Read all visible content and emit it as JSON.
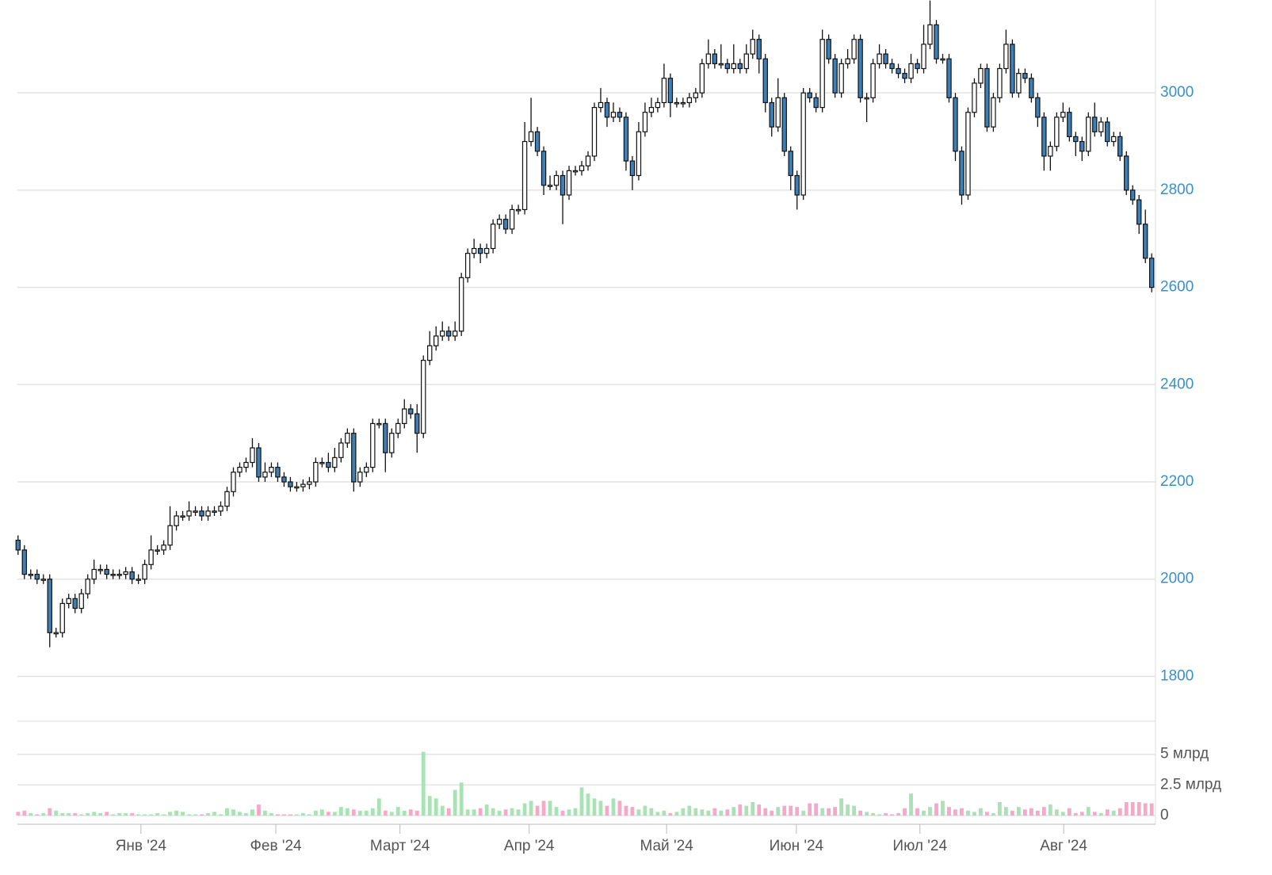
{
  "chart_data": [
    {
      "type": "candlestick",
      "up_color": "#ffffff",
      "down_color": "#3f7fb6",
      "xlim": [
        -0.1,
        179.6
      ],
      "ylim": [
        1773,
        3191
      ],
      "yticks": [
        1800,
        2000,
        2200,
        2400,
        2600,
        2800,
        3000
      ],
      "grid": true,
      "open": [
        2080,
        2060,
        2010,
        2010,
        2000,
        2000,
        1890,
        1890,
        1950,
        1960,
        1940,
        1970,
        2000,
        2020,
        2020,
        2010,
        2010,
        2010,
        2015,
        2000,
        2000,
        2030,
        2060,
        2060,
        2070,
        2110,
        2130,
        2130,
        2140,
        2140,
        2130,
        2140,
        2140,
        2150,
        2180,
        2220,
        2230,
        2240,
        2270,
        2210,
        2220,
        2230,
        2210,
        2200,
        2190,
        2190,
        2195,
        2200,
        2240,
        2240,
        2230,
        2250,
        2280,
        2300,
        2200,
        2220,
        2230,
        2320,
        2320,
        2260,
        2300,
        2320,
        2350,
        2340,
        2300,
        2450,
        2480,
        2500,
        2510,
        2500,
        2510,
        2620,
        2670,
        2680,
        2670,
        2680,
        2730,
        2740,
        2720,
        2760,
        2760,
        2900,
        2920,
        2880,
        2810,
        2810,
        2830,
        2790,
        2840,
        2840,
        2850,
        2870,
        2970,
        2980,
        2950,
        2960,
        2950,
        2860,
        2830,
        2920,
        2960,
        2970,
        2980,
        3030,
        2980,
        2980,
        2980,
        2990,
        3000,
        3060,
        3080,
        3060,
        3060,
        3050,
        3060,
        3050,
        3080,
        3110,
        3070,
        2980,
        2930,
        2990,
        2880,
        2830,
        2790,
        3000,
        2990,
        2970,
        3110,
        3070,
        3000,
        3060,
        3070,
        3110,
        2990,
        2990,
        3060,
        3080,
        3060,
        3050,
        3040,
        3030,
        3060,
        3050,
        3100,
        3140,
        3070,
        3070,
        2990,
        2880,
        2790,
        2960,
        3020,
        3050,
        2930,
        2990,
        3050,
        3100,
        3000,
        3040,
        3030,
        2990,
        2950,
        2870,
        2890,
        2950,
        2960,
        2910,
        2900,
        2880,
        2950,
        2920,
        2940,
        2900,
        2910,
        2870,
        2800,
        2780,
        2730,
        2660
      ],
      "high": [
        2090,
        2070,
        2020,
        2020,
        2010,
        2010,
        1900,
        1960,
        1970,
        1970,
        1980,
        2010,
        2040,
        2030,
        2030,
        2020,
        2020,
        2025,
        2025,
        2010,
        2040,
        2090,
        2070,
        2080,
        2150,
        2140,
        2140,
        2160,
        2150,
        2150,
        2150,
        2150,
        2160,
        2190,
        2230,
        2240,
        2250,
        2290,
        2280,
        2240,
        2240,
        2240,
        2220,
        2210,
        2200,
        2205,
        2210,
        2250,
        2250,
        2260,
        2270,
        2290,
        2310,
        2310,
        2230,
        2240,
        2330,
        2330,
        2330,
        2310,
        2330,
        2370,
        2360,
        2360,
        2460,
        2510,
        2520,
        2530,
        2520,
        2530,
        2630,
        2680,
        2700,
        2690,
        2690,
        2740,
        2750,
        2750,
        2770,
        2770,
        2940,
        2990,
        2930,
        2890,
        2830,
        2840,
        2840,
        2850,
        2850,
        2860,
        2880,
        2980,
        3010,
        2990,
        2980,
        2970,
        2960,
        2870,
        2940,
        2980,
        2990,
        2990,
        3060,
        3040,
        2990,
        2990,
        3000,
        3010,
        3070,
        3110,
        3090,
        3100,
        3070,
        3100,
        3070,
        3100,
        3130,
        3120,
        3080,
        2990,
        3030,
        3000,
        2890,
        2840,
        3010,
        3010,
        3000,
        3130,
        3120,
        3080,
        3070,
        3090,
        3120,
        3120,
        3000,
        3070,
        3100,
        3090,
        3070,
        3060,
        3050,
        3080,
        3070,
        3140,
        3190,
        3150,
        3080,
        3080,
        3000,
        2890,
        2970,
        3030,
        3060,
        3060,
        3000,
        3060,
        3130,
        3110,
        3050,
        3050,
        3040,
        3000,
        2960,
        2900,
        2960,
        2980,
        2970,
        2920,
        2910,
        2960,
        2980,
        2950,
        2950,
        2920,
        2920,
        2880,
        2810,
        2790,
        2760,
        2670
      ],
      "low": [
        2050,
        2000,
        2000,
        1990,
        1990,
        1860,
        1880,
        1880,
        1940,
        1930,
        1930,
        1960,
        1990,
        2010,
        2000,
        2000,
        2000,
        2000,
        1990,
        1990,
        1990,
        2020,
        2050,
        2050,
        2060,
        2100,
        2120,
        2120,
        2130,
        2120,
        2120,
        2130,
        2130,
        2140,
        2170,
        2210,
        2220,
        2230,
        2200,
        2200,
        2210,
        2200,
        2190,
        2180,
        2180,
        2180,
        2185,
        2190,
        2230,
        2220,
        2220,
        2240,
        2270,
        2180,
        2190,
        2210,
        2220,
        2310,
        2220,
        2250,
        2290,
        2310,
        2330,
        2260,
        2290,
        2440,
        2470,
        2490,
        2490,
        2490,
        2500,
        2610,
        2660,
        2650,
        2660,
        2670,
        2720,
        2710,
        2710,
        2750,
        2750,
        2890,
        2870,
        2790,
        2800,
        2800,
        2730,
        2780,
        2830,
        2830,
        2840,
        2860,
        2960,
        2930,
        2940,
        2940,
        2840,
        2800,
        2820,
        2910,
        2950,
        2960,
        2970,
        2950,
        2970,
        2970,
        2970,
        2980,
        2990,
        3050,
        3050,
        3050,
        3040,
        3040,
        3040,
        3040,
        3070,
        3040,
        2960,
        2910,
        2920,
        2870,
        2800,
        2760,
        2780,
        2980,
        2960,
        2960,
        3060,
        2990,
        2990,
        3050,
        3060,
        2980,
        2940,
        2980,
        3050,
        3050,
        3040,
        3030,
        3020,
        3020,
        3040,
        3040,
        3090,
        3060,
        3060,
        2980,
        2860,
        2770,
        2780,
        2950,
        3010,
        2920,
        2920,
        2980,
        3040,
        2990,
        2990,
        3020,
        2980,
        2930,
        2840,
        2840,
        2880,
        2940,
        2900,
        2870,
        2860,
        2870,
        2910,
        2910,
        2890,
        2890,
        2860,
        2790,
        2770,
        2710,
        2650,
        2590
      ],
      "close": [
        2060,
        2010,
        2010,
        2000,
        2000,
        1890,
        1890,
        1950,
        1960,
        1940,
        1970,
        2000,
        2020,
        2020,
        2010,
        2010,
        2010,
        2015,
        2000,
        2000,
        2030,
        2060,
        2060,
        2070,
        2110,
        2130,
        2130,
        2140,
        2140,
        2130,
        2140,
        2140,
        2150,
        2180,
        2220,
        2230,
        2240,
        2270,
        2210,
        2220,
        2230,
        2210,
        2200,
        2190,
        2190,
        2195,
        2200,
        2240,
        2240,
        2230,
        2250,
        2280,
        2300,
        2200,
        2220,
        2230,
        2320,
        2320,
        2260,
        2300,
        2320,
        2350,
        2340,
        2300,
        2450,
        2480,
        2500,
        2510,
        2500,
        2510,
        2620,
        2670,
        2680,
        2670,
        2680,
        2730,
        2740,
        2720,
        2760,
        2760,
        2900,
        2920,
        2880,
        2810,
        2810,
        2830,
        2790,
        2840,
        2840,
        2850,
        2870,
        2970,
        2980,
        2950,
        2960,
        2950,
        2860,
        2830,
        2920,
        2960,
        2970,
        2980,
        3030,
        2980,
        2980,
        2980,
        2990,
        3000,
        3060,
        3080,
        3060,
        3060,
        3050,
        3060,
        3050,
        3080,
        3110,
        3070,
        2980,
        2930,
        2990,
        2880,
        2830,
        2790,
        3000,
        2990,
        2970,
        3110,
        3070,
        3000,
        3060,
        3070,
        3110,
        2990,
        2990,
        3060,
        3080,
        3060,
        3050,
        3040,
        3030,
        3060,
        3050,
        3100,
        3140,
        3070,
        3070,
        2990,
        2880,
        2790,
        2960,
        3020,
        3050,
        2930,
        2990,
        3050,
        3100,
        3000,
        3040,
        3030,
        2990,
        2950,
        2870,
        2890,
        2950,
        2960,
        2910,
        2900,
        2880,
        2950,
        2920,
        2940,
        2900,
        2910,
        2870,
        2800,
        2780,
        2730,
        2660,
        2600
      ]
    },
    {
      "type": "bar",
      "up_color": "#a9e2b4",
      "down_color": "#f4a9c6",
      "xlim": [
        -0.1,
        179.6
      ],
      "ylim": [
        0,
        7.7
      ],
      "yticks": [
        0,
        {
          "value": 2.5,
          "label": "2.5 млрд"
        },
        {
          "value": 5,
          "label": "5 млрд"
        }
      ],
      "grid": true,
      "xticks": [
        {
          "value": 19.4,
          "label": "Янв '24"
        },
        {
          "value": 40.7,
          "label": "Фев '24"
        },
        {
          "value": 60.3,
          "label": "Март '24"
        },
        {
          "value": 80.7,
          "label": "Апр '24"
        },
        {
          "value": 102.4,
          "label": "Май '24"
        },
        {
          "value": 122.9,
          "label": "Июн '24"
        },
        {
          "value": 142.4,
          "label": "Июл '24"
        },
        {
          "value": 165.1,
          "label": "Авг '24"
        }
      ],
      "values": [
        0.3,
        0.4,
        0.2,
        0.1,
        0.2,
        0.6,
        0.4,
        0.2,
        0.2,
        0.2,
        0.1,
        0.2,
        0.3,
        0.2,
        0.3,
        0.1,
        0.2,
        0.2,
        0.2,
        0.1,
        0.1,
        0.1,
        0.2,
        0.1,
        0.3,
        0.4,
        0.3,
        0.1,
        0.1,
        0.1,
        0.2,
        0.3,
        0.1,
        0.6,
        0.5,
        0.3,
        0.2,
        0.5,
        0.9,
        0.4,
        0.2,
        0.1,
        0.1,
        0.1,
        0.1,
        0.2,
        0.1,
        0.4,
        0.5,
        0.3,
        0.3,
        0.7,
        0.6,
        0.5,
        0.4,
        0.4,
        0.6,
        1.4,
        0.4,
        0.3,
        0.7,
        0.4,
        0.5,
        0.4,
        5.2,
        1.6,
        1.4,
        0.8,
        0.6,
        2.1,
        2.7,
        0.5,
        0.5,
        0.6,
        0.9,
        0.6,
        0.4,
        0.5,
        0.6,
        0.5,
        1.0,
        1.2,
        0.8,
        1.2,
        1.2,
        0.7,
        0.4,
        0.5,
        0.6,
        2.3,
        1.8,
        1.4,
        1.2,
        0.8,
        1.4,
        1.2,
        0.8,
        0.7,
        0.5,
        0.8,
        0.6,
        0.3,
        0.4,
        0.2,
        0.3,
        0.6,
        0.8,
        0.6,
        0.5,
        0.4,
        0.6,
        0.4,
        0.5,
        0.7,
        0.9,
        0.8,
        1.1,
        0.9,
        0.6,
        0.4,
        0.7,
        0.8,
        0.8,
        0.7,
        0.4,
        1.0,
        1.0,
        0.6,
        0.6,
        0.7,
        1.4,
        0.9,
        0.8,
        0.4,
        0.3,
        0.2,
        0.1,
        0.2,
        0.1,
        0.2,
        0.6,
        1.8,
        0.6,
        0.4,
        0.7,
        1.0,
        1.2,
        0.7,
        0.5,
        0.6,
        0.4,
        0.3,
        0.6,
        0.3,
        0.2,
        1.1,
        0.7,
        0.4,
        0.7,
        0.5,
        0.6,
        0.4,
        0.7,
        0.9,
        0.5,
        0.3,
        0.6,
        0.2,
        0.3,
        0.7,
        0.3,
        0.2,
        0.5,
        0.4,
        0.6,
        1.1,
        1.1,
        1.1,
        1.0,
        1.0
      ]
    }
  ]
}
